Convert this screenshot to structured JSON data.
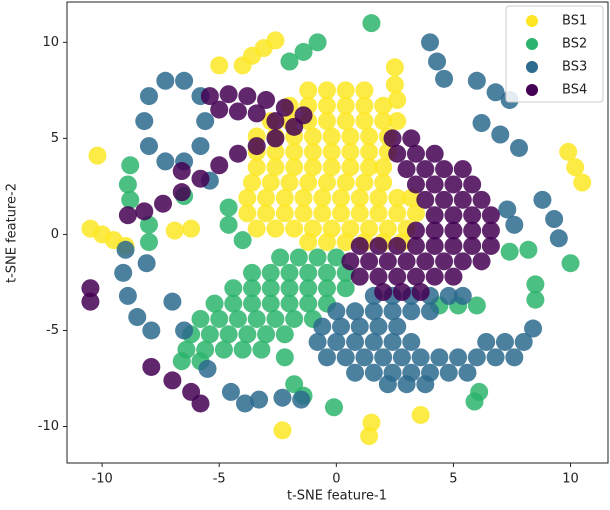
{
  "chart_data": {
    "type": "scatter",
    "x_label": "t-SNE feature-1",
    "y_label": "t-SNE feature-2",
    "xlim": [
      -11.5,
      11.6
    ],
    "ylim": [
      -11.9,
      12.1
    ],
    "xticks": [
      -10,
      -5,
      0,
      5,
      10
    ],
    "yticks": [
      -10,
      -5,
      0,
      5,
      10
    ],
    "legend": "upper right",
    "series": [
      {
        "name": "BS1",
        "color": "#fde725",
        "x": [
          -1.2,
          -0.4,
          0.4,
          1.2,
          -2,
          -1.2,
          -0.4,
          0.4,
          1.2,
          2,
          -2.8,
          -2,
          -1.2,
          -0.4,
          0.4,
          1.2,
          2,
          2.6,
          -3.4,
          -2.6,
          -1.8,
          -1,
          -0.2,
          0.6,
          1.4,
          2.2,
          -3.4,
          -2.6,
          -1.8,
          -1,
          -0.2,
          0.6,
          1.4,
          2.2,
          -3.4,
          -2.6,
          -1.8,
          -1,
          -0.2,
          0.6,
          1.4,
          2,
          -3.6,
          -2.8,
          -2,
          -1.2,
          -0.4,
          0.4,
          1.2,
          2,
          -3.8,
          -3,
          -2.2,
          -1.4,
          -0.6,
          0.2,
          1,
          1.8,
          2.6,
          3.2,
          -3.8,
          -3,
          -2.2,
          -1.4,
          -0.6,
          0.2,
          1,
          1.8,
          2.6,
          3.4,
          -3.4,
          -2.6,
          -1.8,
          -1,
          -0.2,
          0.6,
          1.4,
          2.2,
          3,
          -1.2,
          -0.4,
          0.4,
          1.2,
          2,
          2.8,
          -4,
          -3.6,
          -3.1,
          -2.6,
          -5,
          -10.2,
          -10.5,
          -10,
          -9.5,
          -9,
          -6.9,
          -6.2,
          9.9,
          10.2,
          10.5,
          2.5,
          2.5,
          2.6,
          1.5,
          1.4,
          3.6,
          -2.3
        ],
        "y": [
          7.5,
          7.5,
          7.5,
          7.5,
          6.7,
          6.7,
          6.7,
          6.7,
          6.7,
          6.7,
          5.9,
          5.9,
          5.9,
          5.9,
          5.9,
          5.9,
          5.9,
          5.9,
          5.1,
          5.1,
          5.1,
          5.1,
          5.1,
          5.1,
          5.1,
          5.1,
          4.3,
          4.3,
          4.3,
          4.3,
          4.3,
          4.3,
          4.3,
          4.3,
          3.5,
          3.5,
          3.5,
          3.5,
          3.5,
          3.5,
          3.5,
          3.5,
          2.7,
          2.7,
          2.7,
          2.7,
          2.7,
          2.7,
          2.7,
          2.7,
          1.9,
          1.9,
          1.9,
          1.9,
          1.9,
          1.9,
          1.9,
          1.9,
          1.9,
          1.9,
          1.1,
          1.1,
          1.1,
          1.1,
          1.1,
          1.1,
          1.1,
          1.1,
          1.1,
          1.1,
          0.3,
          0.3,
          0.3,
          0.3,
          0.3,
          0.3,
          0.3,
          0.3,
          0.3,
          -0.4,
          -0.4,
          -0.4,
          -0.4,
          -0.4,
          -0.4,
          8.8,
          9.3,
          9.7,
          10.1,
          8.8,
          4.1,
          0.3,
          0,
          -0.3,
          -0.6,
          0.2,
          0.3,
          4.3,
          3.5,
          2.7,
          8.7,
          7.8,
          7,
          -9.8,
          -10.5,
          -9.4,
          -10.2
        ]
      },
      {
        "name": "BS2",
        "color": "#2db46c",
        "x": [
          -2.4,
          -1.6,
          -0.8,
          0,
          -3.6,
          -2.8,
          -2,
          -1.2,
          -0.4,
          0.4,
          -4.4,
          -3.6,
          -2.8,
          -2,
          -1.2,
          -0.4,
          0.4,
          -5.2,
          -4.4,
          -3.6,
          -2.8,
          -2,
          -1.2,
          -0.4,
          -5.8,
          -5,
          -4.2,
          -3.4,
          -2.6,
          -1.8,
          -1,
          -6.2,
          -5.4,
          -4.6,
          -3.8,
          -3,
          -2.2,
          -6.4,
          -5.6,
          -4.8,
          -4,
          -3.2,
          -6.6,
          -5.8,
          -2,
          -1.4,
          -0.8,
          1.5,
          -8.8,
          -8.9,
          -8.8,
          -8,
          -8,
          -6.5,
          -4.6,
          -4.6,
          -4,
          -2.2,
          -1.8,
          -1.4,
          -0.1,
          5.9,
          6.1,
          4.4,
          5.2,
          6,
          7.4,
          8.2,
          8.5,
          8.5,
          10
        ],
        "y": [
          -1.2,
          -1.2,
          -1.2,
          -1.2,
          -2,
          -2,
          -2,
          -2,
          -2,
          -2,
          -2.8,
          -2.8,
          -2.8,
          -2.8,
          -2.8,
          -2.8,
          -2.8,
          -3.6,
          -3.6,
          -3.6,
          -3.6,
          -3.6,
          -3.6,
          -3.6,
          -4.4,
          -4.4,
          -4.4,
          -4.4,
          -4.4,
          -4.4,
          -4.4,
          -5.2,
          -5.2,
          -5.2,
          -5.2,
          -5.2,
          -5.2,
          -6,
          -6,
          -6,
          -6,
          -6,
          -6.6,
          -6.6,
          9,
          9.5,
          10,
          11,
          3.6,
          2.6,
          1.8,
          0.5,
          -0.4,
          2,
          1.4,
          0.5,
          -0.3,
          -6.4,
          -7.8,
          -8.4,
          -9,
          -8.7,
          -8.2,
          -3.7,
          -3.7,
          -3.7,
          -0.9,
          -0.8,
          -2.6,
          -3.4,
          -1.5
        ]
      },
      {
        "name": "BS3",
        "color": "#2c6a8e",
        "x": [
          1.6,
          2.4,
          3.2,
          4,
          4.8,
          5.4,
          0,
          0.8,
          1.6,
          2.4,
          3.2,
          4,
          -0.6,
          0.2,
          1,
          1.8,
          2.6,
          -0.8,
          0,
          0.8,
          1.6,
          2.4,
          3.2,
          -0.4,
          0.4,
          1.2,
          2,
          2.8,
          3.6,
          4.4,
          5.2,
          6,
          6.8,
          7.6,
          0.8,
          1.6,
          2.4,
          3.2,
          4,
          4.8,
          5.6,
          6.4,
          7.2,
          8,
          8.4,
          2.2,
          3,
          3.8,
          -5.6,
          -5.8,
          -6.5,
          -7.3,
          -8,
          -8.2,
          -8,
          -7.3,
          -6.5,
          -5.8,
          -9,
          -9.1,
          -8.9,
          -8.5,
          -7.9,
          -8.1,
          -7,
          -6.5,
          -5.5,
          -4.5,
          -3.9,
          -5.4,
          -3.3,
          -2.3,
          -1.5,
          4,
          4.3,
          4.6,
          6,
          6.8,
          7.4,
          6.2,
          7,
          7.8,
          7.3,
          7.6,
          8.8,
          9.3,
          9.5
        ],
        "y": [
          -3.2,
          -3.2,
          -3.2,
          -3.2,
          -3.2,
          -3.2,
          -4,
          -4,
          -4,
          -4,
          -4,
          -4,
          -4.8,
          -4.8,
          -4.8,
          -4.8,
          -4.8,
          -5.6,
          -5.6,
          -5.6,
          -5.6,
          -5.6,
          -5.6,
          -6.4,
          -6.4,
          -6.4,
          -6.4,
          -6.4,
          -6.4,
          -6.4,
          -6.4,
          -6.4,
          -6.4,
          -6.4,
          -7.2,
          -7.2,
          -7.2,
          -7.2,
          -7.2,
          -7.2,
          -7.2,
          -5.6,
          -5.6,
          -5.6,
          -4.9,
          -7.8,
          -7.8,
          -7.8,
          5.9,
          7.2,
          8,
          8,
          7.2,
          5.9,
          4.6,
          3.8,
          3.8,
          4.6,
          -0.8,
          -2,
          -3.2,
          -4.3,
          -5,
          -1.5,
          -3.5,
          -5,
          -7,
          -8.2,
          -8.8,
          2.8,
          -8.6,
          -8.5,
          -8.6,
          10,
          9,
          8.1,
          8,
          7.4,
          7,
          5.8,
          5.2,
          4.5,
          1.3,
          0.5,
          1.8,
          0.8,
          -0.2
        ]
      },
      {
        "name": "BS4",
        "color": "#440154",
        "x": [
          2.4,
          3.2,
          2.6,
          3.4,
          4.2,
          3,
          3.8,
          4.6,
          5.4,
          3.4,
          4.2,
          5,
          5.8,
          3.8,
          4.6,
          5.4,
          6.2,
          4.2,
          5,
          5.8,
          6.6,
          3.4,
          4.2,
          5,
          5.8,
          6.6,
          1,
          1.8,
          2.6,
          3.4,
          4.2,
          5,
          5.8,
          6.6,
          0.6,
          1.4,
          2.2,
          3,
          3.8,
          4.6,
          5.4,
          6.2,
          1,
          1.8,
          2.6,
          3.4,
          4.2,
          5,
          2,
          2.8,
          3.6,
          -5.4,
          -4.6,
          -3.8,
          -3,
          -2.2,
          -1.4,
          -5,
          -4.2,
          -3.4,
          -2.6,
          -1.8,
          -2.6,
          -3.4,
          -4.2,
          -5,
          -5.8,
          -6.6,
          -7.4,
          -8.2,
          -8.9,
          -6.6,
          -10.5,
          -10.5,
          -7.9,
          -7,
          -6.2,
          -5.8
        ],
        "y": [
          5,
          5,
          4.2,
          4.2,
          4.2,
          3.4,
          3.4,
          3.4,
          3.4,
          2.6,
          2.6,
          2.6,
          2.6,
          1.8,
          1.8,
          1.8,
          1.8,
          1,
          1,
          1,
          1,
          0.2,
          0.2,
          0.2,
          0.2,
          0.2,
          -0.6,
          -0.6,
          -0.6,
          -0.6,
          -0.6,
          -0.6,
          -0.6,
          -0.6,
          -1.4,
          -1.4,
          -1.4,
          -1.4,
          -1.4,
          -1.4,
          -1.4,
          -1.4,
          -2.2,
          -2.2,
          -2.2,
          -2.2,
          -2.2,
          -2.2,
          -3,
          -3,
          -3,
          7.2,
          7.3,
          7.2,
          7,
          6.6,
          6.2,
          6.5,
          6.4,
          6.3,
          5.9,
          5.6,
          5,
          4.6,
          4.2,
          3.6,
          2.9,
          2.2,
          1.6,
          1.2,
          1,
          3.3,
          -2.8,
          -3.5,
          -6.9,
          -7.6,
          -8.2,
          -8.8
        ]
      }
    ]
  }
}
